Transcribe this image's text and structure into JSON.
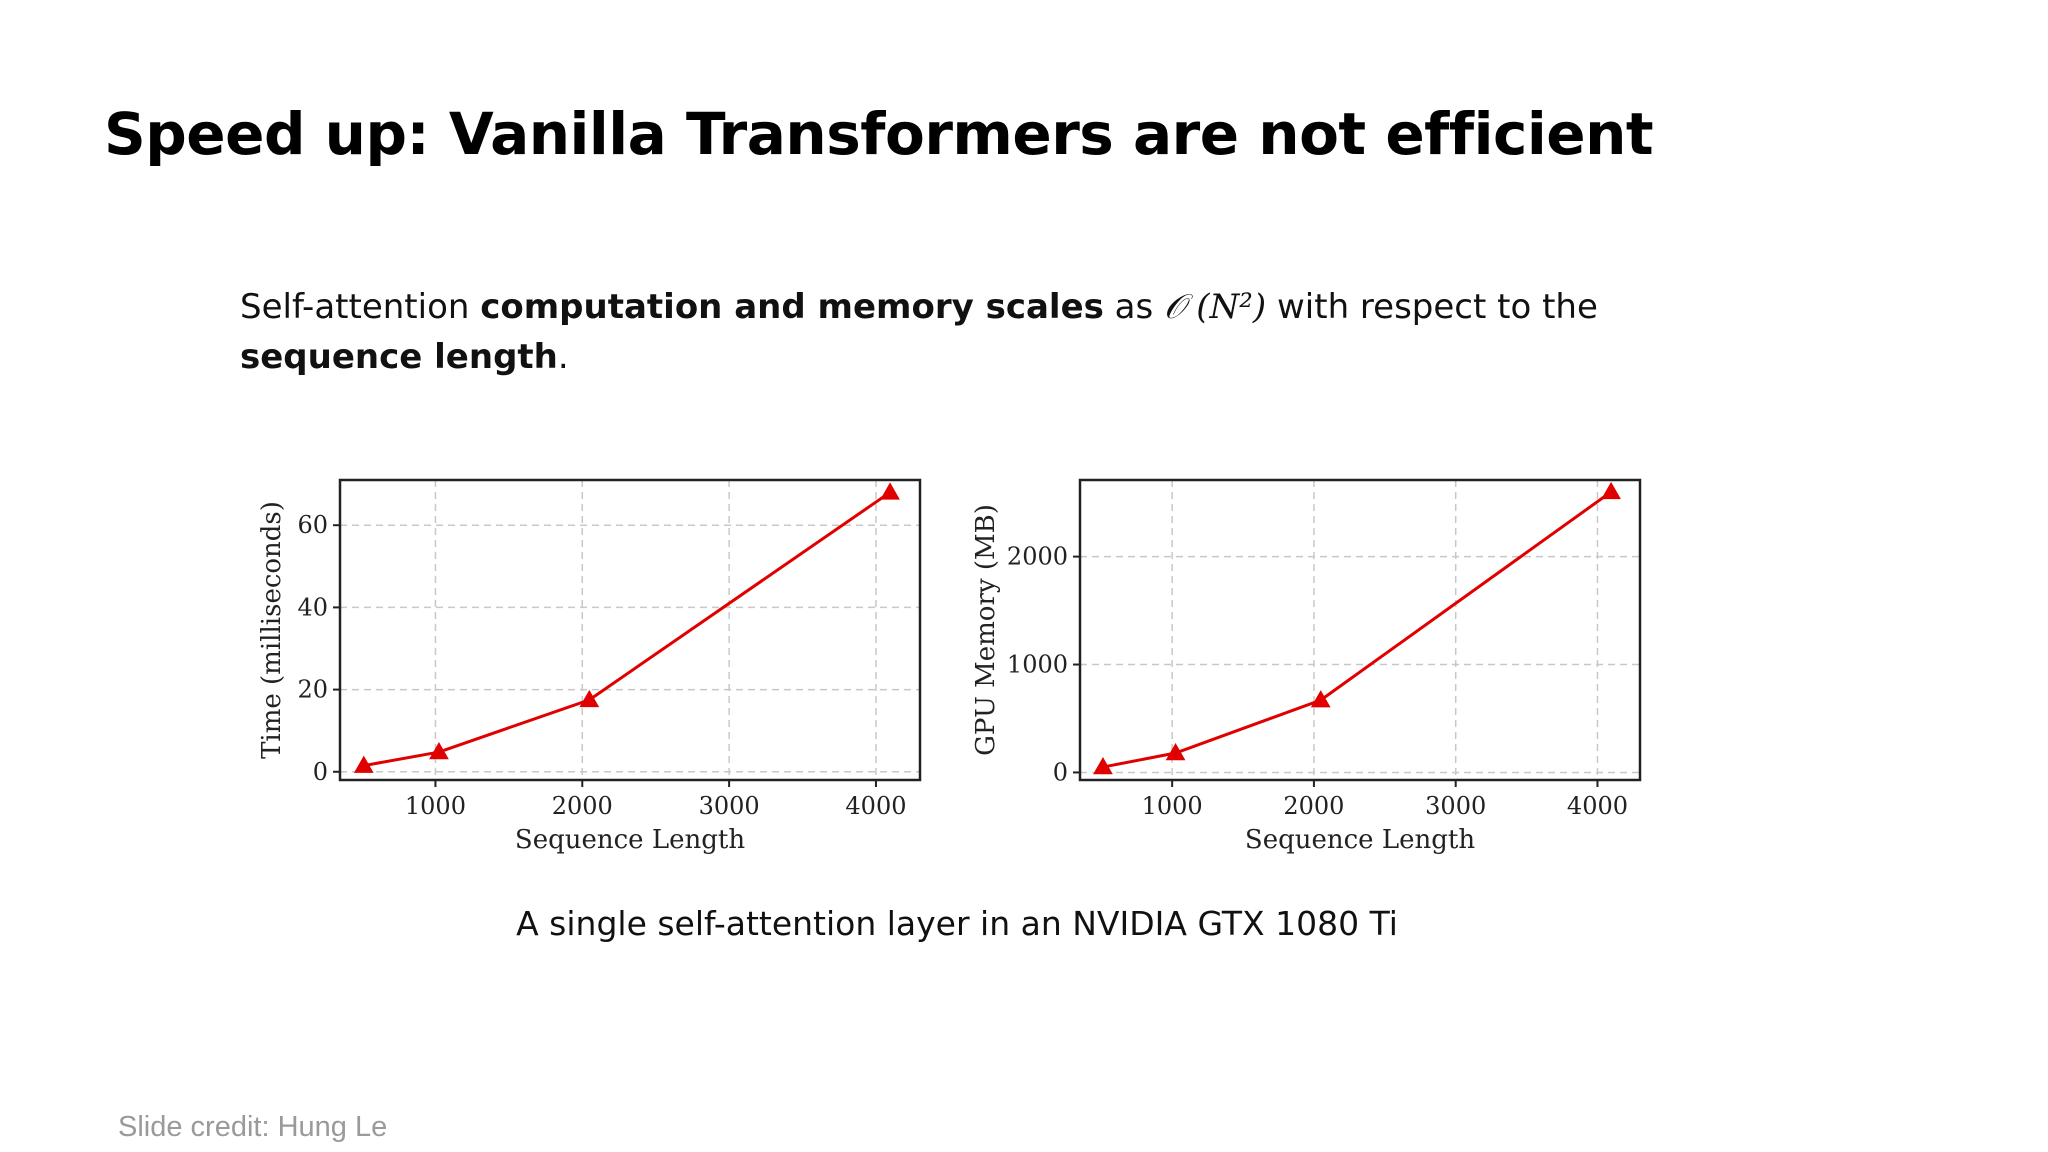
{
  "slide": {
    "title": "Speed up: Vanilla Transformers are not efficient",
    "description": {
      "part1": "Self-attention ",
      "bold1": "computation and memory scales",
      "part2": " as ",
      "math": "𝒪 (N²)",
      "part3": " with respect to the ",
      "bold2": "sequence length",
      "part4": "."
    },
    "caption": "A single self-attention layer in an NVIDIA GTX 1080 Ti",
    "credit": "Slide credit: Hung Le"
  },
  "colors": {
    "line": "#e00000",
    "grid": "#c8c8c8",
    "axis": "#222222"
  },
  "chart_data": [
    {
      "type": "line",
      "xlabel": "Sequence Length",
      "ylabel": "Time (milliseconds)",
      "xlim": [
        350,
        4300
      ],
      "ylim": [
        -2,
        71
      ],
      "xticks": [
        1000,
        2000,
        3000,
        4000
      ],
      "yticks": [
        0,
        20,
        40,
        60
      ],
      "grid": true,
      "marker": "triangle",
      "series": [
        {
          "x": [
            512,
            1024,
            2048,
            4096
          ],
          "y": [
            1.5,
            4.8,
            17.5,
            68
          ]
        }
      ]
    },
    {
      "type": "line",
      "xlabel": "Sequence Length",
      "ylabel": "GPU Memory (MB)",
      "xlim": [
        350,
        4300
      ],
      "ylim": [
        -70,
        2710
      ],
      "xticks": [
        1000,
        2000,
        3000,
        4000
      ],
      "yticks": [
        0,
        1000,
        2000
      ],
      "grid": true,
      "marker": "triangle",
      "series": [
        {
          "x": [
            512,
            1024,
            2048,
            4096
          ],
          "y": [
            50,
            180,
            670,
            2600
          ]
        }
      ]
    }
  ]
}
